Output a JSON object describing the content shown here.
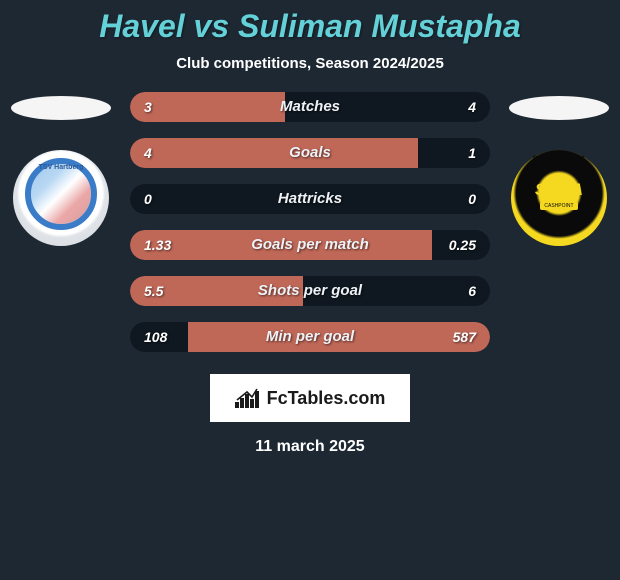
{
  "title": "Havel vs Suliman Mustapha",
  "subtitle": "Club competitions, Season 2024/2025",
  "date": "11 march 2025",
  "brand": "FcTables.com",
  "colors": {
    "background": "#1e2832",
    "title": "#64d0d8",
    "bar_track": "#0f1820",
    "bar_fill": "#c06858",
    "text": "#ffffff"
  },
  "club_left": {
    "name": "TSV Hartberg",
    "ring_color": "#3a7cc8"
  },
  "club_right": {
    "name": "SCRA",
    "sub": "CASHPOINT",
    "arc": "RHEINDORF ALTA",
    "bg_outer": "#f5d820",
    "bg_inner": "#0a0a0a"
  },
  "typography": {
    "title_fontsize": 32,
    "subtitle_fontsize": 15,
    "bar_label_fontsize": 15,
    "bar_value_fontsize": 14,
    "date_fontsize": 16
  },
  "stats": [
    {
      "label": "Matches",
      "left_val": "3",
      "right_val": "4",
      "left_pct": 43,
      "right_pct": 0
    },
    {
      "label": "Goals",
      "left_val": "4",
      "right_val": "1",
      "left_pct": 80,
      "right_pct": 0
    },
    {
      "label": "Hattricks",
      "left_val": "0",
      "right_val": "0",
      "left_pct": 0,
      "right_pct": 0
    },
    {
      "label": "Goals per match",
      "left_val": "1.33",
      "right_val": "0.25",
      "left_pct": 84,
      "right_pct": 0
    },
    {
      "label": "Shots per goal",
      "left_val": "5.5",
      "right_val": "6",
      "left_pct": 48,
      "right_pct": 0
    },
    {
      "label": "Min per goal",
      "left_val": "108",
      "right_val": "587",
      "left_pct": 0,
      "right_pct": 84
    }
  ]
}
